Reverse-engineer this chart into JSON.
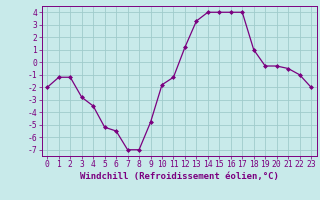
{
  "x": [
    0,
    1,
    2,
    3,
    4,
    5,
    6,
    7,
    8,
    9,
    10,
    11,
    12,
    13,
    14,
    15,
    16,
    17,
    18,
    19,
    20,
    21,
    22,
    23
  ],
  "y": [
    -2.0,
    -1.2,
    -1.2,
    -2.8,
    -3.5,
    -5.2,
    -5.5,
    -7.0,
    -7.0,
    -4.8,
    -1.8,
    -1.2,
    1.2,
    3.3,
    4.0,
    4.0,
    4.0,
    4.0,
    1.0,
    -0.3,
    -0.3,
    -0.5,
    -1.0,
    -2.0
  ],
  "line_color": "#7b0080",
  "marker_color": "#7b0080",
  "bg_color": "#c8eaea",
  "grid_color": "#a0cccc",
  "xlabel": "Windchill (Refroidissement éolien,°C)",
  "xlim": [
    -0.5,
    23.5
  ],
  "ylim": [
    -7.5,
    4.5
  ],
  "yticks": [
    -7,
    -6,
    -5,
    -4,
    -3,
    -2,
    -1,
    0,
    1,
    2,
    3,
    4
  ],
  "xticks": [
    0,
    1,
    2,
    3,
    4,
    5,
    6,
    7,
    8,
    9,
    10,
    11,
    12,
    13,
    14,
    15,
    16,
    17,
    18,
    19,
    20,
    21,
    22,
    23
  ],
  "tick_label_color": "#7b0080",
  "axis_color": "#7b0080",
  "xlabel_fontsize": 6.5,
  "tick_fontsize": 5.8,
  "xlabel_fontweight": "bold"
}
